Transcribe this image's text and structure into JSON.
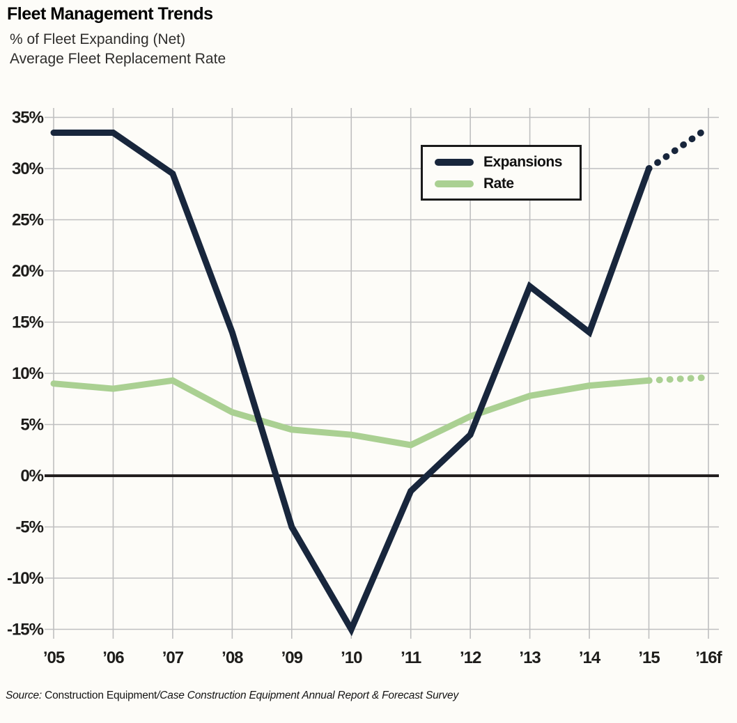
{
  "header": {
    "title": "Fleet Management Trends",
    "subtitle_line1": "% of Fleet Expanding (Net)",
    "subtitle_line2": "Average Fleet Replacement Rate"
  },
  "legend": {
    "items": [
      {
        "label": "Expansions",
        "color": "#18263c"
      },
      {
        "label": "Rate",
        "color": "#aad092"
      }
    ]
  },
  "source": {
    "prefix": "Source:",
    "publication": " Construction Equipment",
    "suffix": "/Case Construction Equipment Annual Report & Forecast Survey"
  },
  "colors": {
    "navy": "#18263c",
    "green": "#aad092",
    "grid": "#bfbfc0",
    "zero_line": "#231f20",
    "axis_text": "#1d1c1a",
    "background": "#fdfcf8"
  },
  "chart_data": {
    "type": "line",
    "title": "Fleet Management Trends",
    "categories": [
      "’05",
      "’06",
      "’07",
      "’08",
      "’09",
      "’10",
      "’11",
      "’12",
      "’13",
      "’14",
      "’15",
      "’16f"
    ],
    "series": [
      {
        "name": "Expansions",
        "color": "#18263c",
        "values": [
          33.5,
          33.5,
          29.5,
          14,
          -5,
          -15,
          -1.5,
          4,
          18.5,
          14,
          30,
          34
        ],
        "forecast_from_index": 10
      },
      {
        "name": "Rate",
        "color": "#aad092",
        "values": [
          9,
          8.5,
          9.3,
          6.2,
          4.5,
          4,
          3,
          5.8,
          7.8,
          8.8,
          9.3,
          9.6
        ],
        "forecast_from_index": 10
      }
    ],
    "y_ticks": [
      35,
      30,
      25,
      20,
      15,
      10,
      5,
      0,
      -5,
      -10,
      -15
    ],
    "y_tick_labels": [
      "35%",
      "30%",
      "25%",
      "20%",
      "15%",
      "10%",
      "5%",
      "0%",
      "-5%",
      "-10%",
      "-15%"
    ],
    "ylim": [
      -15,
      35
    ],
    "xlabel": "",
    "ylabel": "",
    "grid": true,
    "zero_line": true,
    "legend_position": "top-right",
    "forecast_style": "dotted"
  }
}
